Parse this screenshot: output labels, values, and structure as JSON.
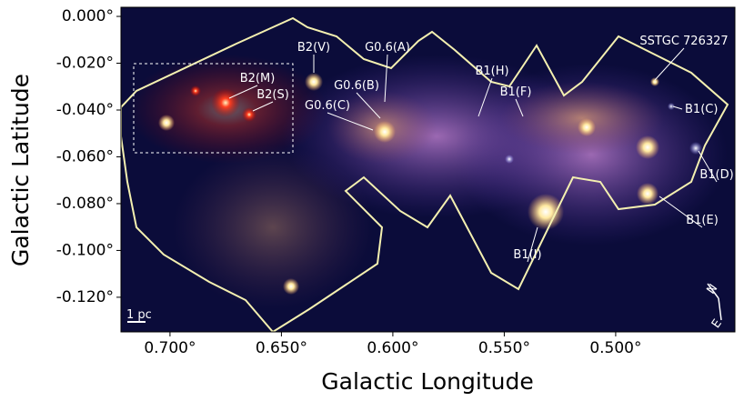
{
  "chart_data": {
    "type": "image",
    "xlabel": "Galactic Longitude",
    "ylabel": "Galactic Latitude",
    "xlim": [
      0.722,
      0.4465
    ],
    "ylim": [
      -0.1348,
      0.0039
    ],
    "xticks": [
      {
        "value": 0.7,
        "label": "0.700°"
      },
      {
        "value": 0.65,
        "label": "0.650°"
      },
      {
        "value": 0.6,
        "label": "0.600°"
      },
      {
        "value": 0.55,
        "label": "0.550°"
      },
      {
        "value": 0.5,
        "label": "0.500°"
      }
    ],
    "yticks": [
      {
        "value": 0,
        "label": "0.000°"
      },
      {
        "value": -0.02,
        "label": "-0.020°"
      },
      {
        "value": -0.04,
        "label": "-0.040°"
      },
      {
        "value": -0.06,
        "label": "-0.060°"
      },
      {
        "value": -0.08,
        "label": "-0.080°"
      },
      {
        "value": -0.1,
        "label": "-0.100°"
      },
      {
        "value": -0.12,
        "label": "-0.120°"
      }
    ],
    "annotations": [
      "B2(V)",
      "G0.6(A)",
      "B2(M)",
      "B2(S)",
      "G0.6(B)",
      "G0.6(C)",
      "B1(H)",
      "B1(F)",
      "SSTGC 726327",
      "B1(C)",
      "B1(D)",
      "B1(E)",
      "B1(I)"
    ],
    "scale_bar": "1 pc",
    "compass": [
      "N",
      "E"
    ]
  }
}
